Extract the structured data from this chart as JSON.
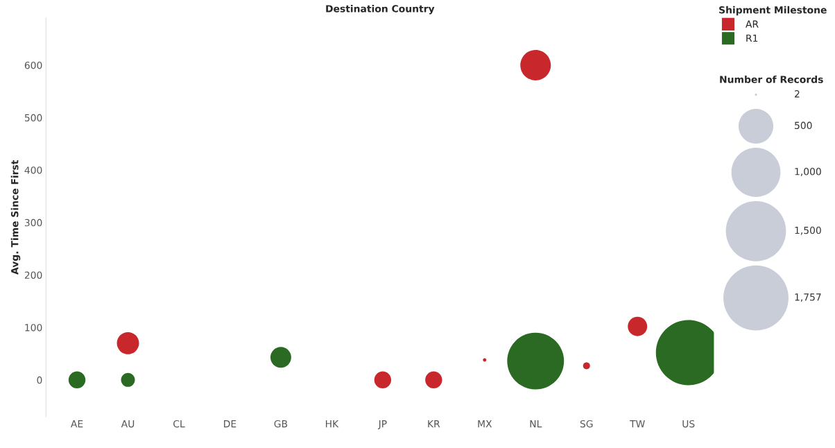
{
  "chart_data": {
    "type": "bubble",
    "title": "Destination Country",
    "ylabel": "Avg. Time Since First",
    "categories": [
      "AE",
      "AU",
      "CL",
      "DE",
      "GB",
      "HK",
      "JP",
      "KR",
      "MX",
      "NL",
      "SG",
      "TW",
      "US"
    ],
    "series": [
      {
        "name": "AR",
        "color": "#c8282b",
        "values": [
          null,
          70,
          null,
          null,
          null,
          null,
          0,
          0,
          38,
          600,
          27,
          102,
          null
        ],
        "sizes": [
          null,
          204,
          null,
          null,
          null,
          null,
          119,
          119,
          5,
          385,
          20,
          156,
          null
        ]
      },
      {
        "name": "R1",
        "color": "#2a6a23",
        "values": [
          0,
          0,
          null,
          null,
          43,
          null,
          null,
          null,
          null,
          36,
          null,
          null,
          52
        ],
        "sizes": [
          119,
          80,
          null,
          null,
          179,
          null,
          null,
          null,
          null,
          1337,
          null,
          null,
          1757
        ]
      }
    ],
    "ylim": [
      -70,
      690
    ],
    "yticks": [
      0,
      100,
      200,
      300,
      400,
      500,
      600
    ],
    "size_legend": [
      2,
      500,
      {
        "value": 1000,
        "label": "1,000"
      },
      {
        "value": 1500,
        "label": "1,500"
      },
      {
        "value": 1757,
        "label": "1,757"
      }
    ],
    "annotations": [
      "Number of Records"
    ],
    "legend_title": "Shipment Milestone",
    "legend": "top right",
    "grid": false
  }
}
